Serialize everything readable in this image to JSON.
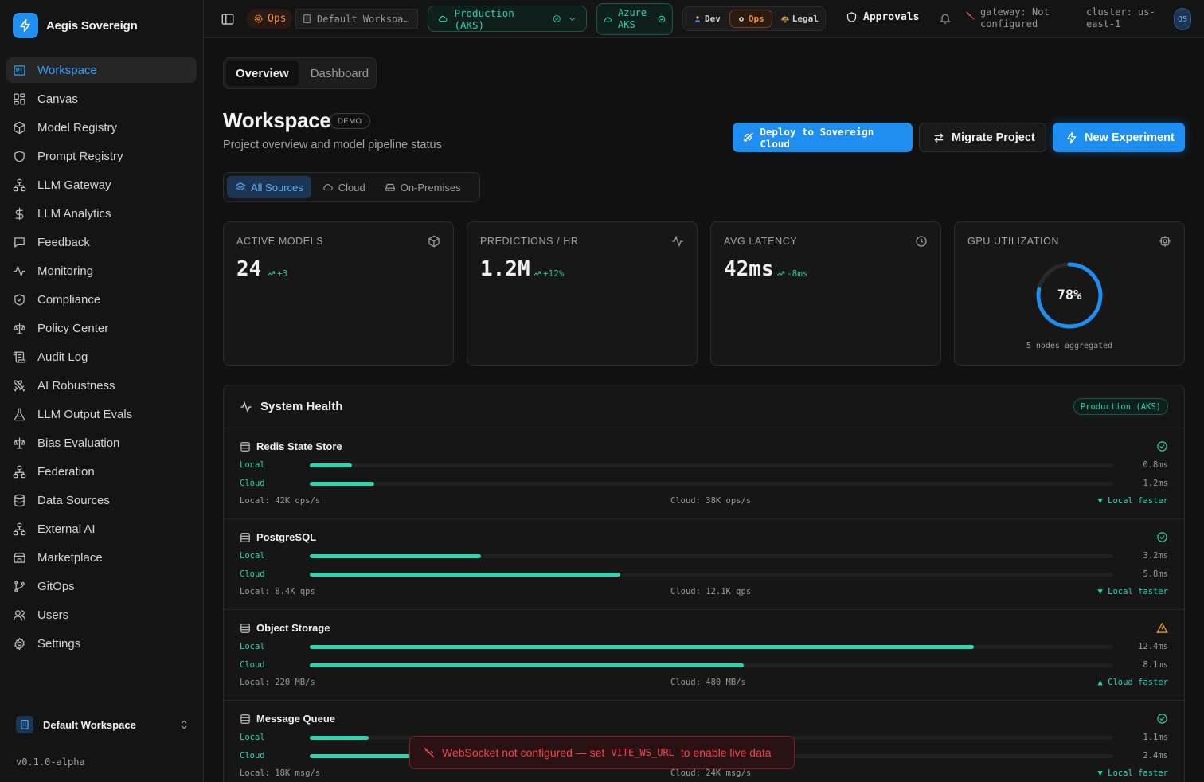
{
  "app": {
    "name": "Aegis Sovereign",
    "version": "v0.1.0-alpha",
    "accent": "#1e8ff0"
  },
  "sidebar": {
    "items": [
      {
        "label": "Workspace",
        "icon": "workspace-icon",
        "active": true
      },
      {
        "label": "Canvas",
        "icon": "canvas-icon"
      },
      {
        "label": "Model Registry",
        "icon": "cube-icon"
      },
      {
        "label": "Prompt Registry",
        "icon": "shield-icon"
      },
      {
        "label": "LLM Gateway",
        "icon": "network-icon"
      },
      {
        "label": "LLM Analytics",
        "icon": "dollar-icon"
      },
      {
        "label": "Feedback",
        "icon": "message-icon"
      },
      {
        "label": "Monitoring",
        "icon": "activity-icon"
      },
      {
        "label": "Compliance",
        "icon": "shield-check-icon"
      },
      {
        "label": "Policy Center",
        "icon": "scale-icon"
      },
      {
        "label": "Audit Log",
        "icon": "scroll-icon"
      },
      {
        "label": "AI Robustness",
        "icon": "swords-icon"
      },
      {
        "label": "LLM Output Evals",
        "icon": "flask-icon"
      },
      {
        "label": "Bias Evaluation",
        "icon": "scale-icon"
      },
      {
        "label": "Federation",
        "icon": "network-icon"
      },
      {
        "label": "Data Sources",
        "icon": "database-icon"
      },
      {
        "label": "External AI",
        "icon": "network-icon"
      },
      {
        "label": "Marketplace",
        "icon": "store-icon"
      },
      {
        "label": "GitOps",
        "icon": "git-branch-icon"
      },
      {
        "label": "Users",
        "icon": "users-icon"
      },
      {
        "label": "Settings",
        "icon": "gear-icon"
      }
    ],
    "workspace_switcher": "Default Workspace"
  },
  "topbar": {
    "ops_badge": "Ops",
    "workspace": "Default Workspa…",
    "environment": "Production (AKS)",
    "cloud_line1": "Azure",
    "cloud_line2": "AKS",
    "personas": [
      "Dev",
      "Ops",
      "Legal"
    ],
    "active_persona": "Ops",
    "approvals": "Approvals",
    "gateway_line1": "gateway: Not",
    "gateway_line2": "configured",
    "cluster_line1": "cluster: us-",
    "cluster_line2": "east-1",
    "avatar": "OS"
  },
  "main": {
    "tabs": [
      "Overview",
      "Dashboard"
    ],
    "title": "Workspace",
    "badge": "DEMO",
    "subtitle": "Project overview and model pipeline status",
    "buttons": {
      "deploy": "Deploy to Sovereign Cloud",
      "migrate": "Migrate Project",
      "new": "New Experiment"
    },
    "source_filters": [
      "All Sources",
      "Cloud",
      "On-Premises"
    ],
    "metrics": [
      {
        "label": "ACTIVE MODELS",
        "value": "24",
        "delta": "+3",
        "icon": "cube-icon"
      },
      {
        "label": "PREDICTIONS / HR",
        "value": "1.2M",
        "delta": "+12%",
        "icon": "activity-icon"
      },
      {
        "label": "AVG LATENCY",
        "value": "42ms",
        "delta": "-8ms",
        "icon": "clock-icon"
      },
      {
        "label": "GPU UTILIZATION",
        "value": "78%",
        "gauge_fraction": 0.78,
        "caption": "5 nodes aggregated",
        "icon": "gear-icon"
      }
    ]
  },
  "health": {
    "title": "System Health",
    "env_badge": "Production (AKS)",
    "services": [
      {
        "name": "Redis State Store",
        "status": "ok",
        "local": {
          "label": "Local",
          "value": "0.8ms",
          "fraction": 0.053
        },
        "cloud": {
          "label": "Cloud",
          "value": "1.2ms",
          "fraction": 0.08
        },
        "local_throughput": "Local: 42K ops/s",
        "cloud_throughput": "Cloud: 38K ops/s",
        "verdict": "▼ Local faster"
      },
      {
        "name": "PostgreSQL",
        "status": "ok",
        "local": {
          "label": "Local",
          "value": "3.2ms",
          "fraction": 0.213
        },
        "cloud": {
          "label": "Cloud",
          "value": "5.8ms",
          "fraction": 0.387
        },
        "local_throughput": "Local: 8.4K qps",
        "cloud_throughput": "Cloud: 12.1K qps",
        "verdict": "▼ Local faster"
      },
      {
        "name": "Object Storage",
        "status": "warning",
        "local": {
          "label": "Local",
          "value": "12.4ms",
          "fraction": 0.827
        },
        "cloud": {
          "label": "Cloud",
          "value": "8.1ms",
          "fraction": 0.54
        },
        "local_throughput": "Local: 220 MB/s",
        "cloud_throughput": "Cloud: 480 MB/s",
        "verdict": "▲ Cloud faster"
      },
      {
        "name": "Message Queue",
        "status": "ok",
        "local": {
          "label": "Local",
          "value": "1.1ms",
          "fraction": 0.073
        },
        "cloud": {
          "label": "Cloud",
          "value": "2.4ms",
          "fraction": 0.16
        },
        "local_throughput": "Local: 18K msg/s",
        "cloud_throughput": "Cloud: 24K msg/s",
        "verdict": "▼ Local faster"
      }
    ]
  },
  "toast": {
    "prefix": "WebSocket not configured — set",
    "code": "VITE_WS_URL",
    "suffix": "to enable live data"
  },
  "colors": {
    "ok": "#2ec98f",
    "warning": "#f5a524",
    "teal": "#2ed3b0",
    "error": "#f0474c"
  }
}
